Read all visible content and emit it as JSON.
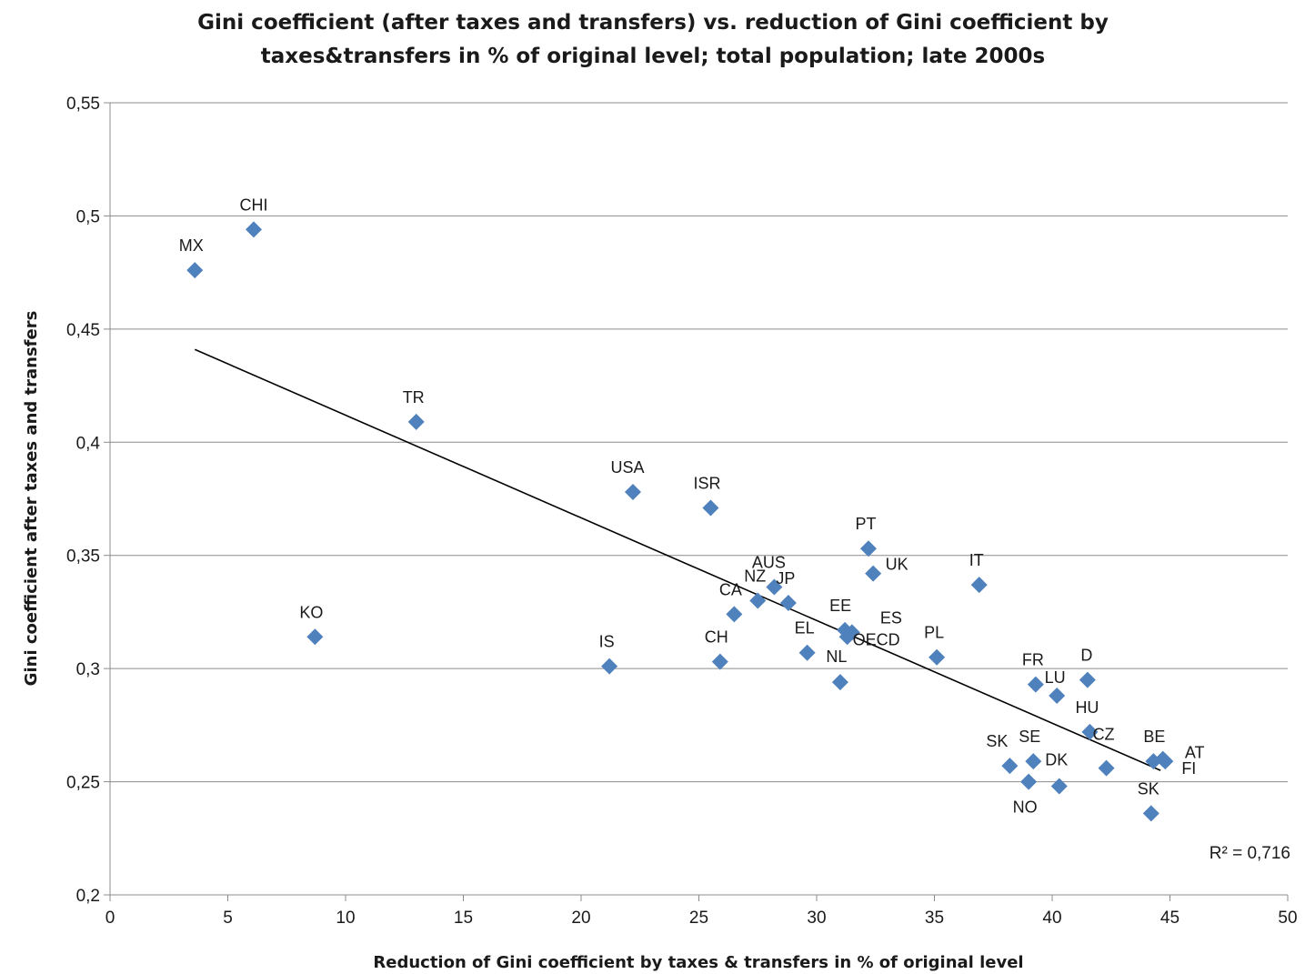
{
  "chart_data": {
    "type": "scatter",
    "title_lines": [
      "Gini coefficient (after taxes and transfers) vs. reduction of Gini coefficient by",
      "taxes&transfers in % of original level; total population; late 2000s"
    ],
    "xlabel": "Reduction of Gini coefficient by taxes & transfers in % of original level",
    "ylabel": "Gini coefficient after taxes and transfers",
    "xlim": [
      0,
      50
    ],
    "ylim": [
      0.2,
      0.55
    ],
    "x_ticks": [
      0,
      5,
      10,
      15,
      20,
      25,
      30,
      35,
      40,
      45,
      50
    ],
    "x_tick_labels": [
      "0",
      "5",
      "10",
      "15",
      "20",
      "25",
      "30",
      "35",
      "40",
      "45",
      "50"
    ],
    "y_ticks": [
      0.2,
      0.25,
      0.3,
      0.35,
      0.4,
      0.45,
      0.5,
      0.55
    ],
    "y_tick_labels": [
      "0,2",
      "0,25",
      "0,3",
      "0,35",
      "0,4",
      "0,45",
      "0,5",
      "0,55"
    ],
    "grid": "horizontal",
    "marker_color": "#4f81bd",
    "trendline": {
      "x": [
        3.6,
        44.6
      ],
      "y": [
        0.441,
        0.255
      ],
      "color": "#000000"
    },
    "r_squared_label": "R² = 0,716",
    "points": [
      {
        "label": "MX",
        "x": 3.6,
        "y": 0.476
      },
      {
        "label": "CHI",
        "x": 6.1,
        "y": 0.494
      },
      {
        "label": "TR",
        "x": 13.0,
        "y": 0.409
      },
      {
        "label": "KO",
        "x": 8.7,
        "y": 0.314
      },
      {
        "label": "USA",
        "x": 22.2,
        "y": 0.378
      },
      {
        "label": "ISR",
        "x": 25.5,
        "y": 0.371
      },
      {
        "label": "IS",
        "x": 21.2,
        "y": 0.301
      },
      {
        "label": "CH",
        "x": 25.9,
        "y": 0.303
      },
      {
        "label": "CA",
        "x": 26.5,
        "y": 0.324
      },
      {
        "label": "NZ",
        "x": 27.5,
        "y": 0.33
      },
      {
        "label": "AUS",
        "x": 28.2,
        "y": 0.336
      },
      {
        "label": "JP",
        "x": 28.8,
        "y": 0.329
      },
      {
        "label": "EL",
        "x": 29.6,
        "y": 0.307
      },
      {
        "label": "NL",
        "x": 31.0,
        "y": 0.294
      },
      {
        "label": "EE",
        "x": 31.2,
        "y": 0.317
      },
      {
        "label": "OECD",
        "x": 31.3,
        "y": 0.314
      },
      {
        "label": "PT",
        "x": 32.2,
        "y": 0.353
      },
      {
        "label": "UK",
        "x": 32.4,
        "y": 0.342
      },
      {
        "label": "ES",
        "x": 31.5,
        "y": 0.316
      },
      {
        "label": "PL",
        "x": 35.1,
        "y": 0.305
      },
      {
        "label": "IT",
        "x": 36.9,
        "y": 0.337
      },
      {
        "label": "FR",
        "x": 39.3,
        "y": 0.293
      },
      {
        "label": "LU",
        "x": 40.2,
        "y": 0.288
      },
      {
        "label": "D",
        "x": 41.5,
        "y": 0.295
      },
      {
        "label": "HU",
        "x": 41.6,
        "y": 0.272
      },
      {
        "label": "SK",
        "x": 38.2,
        "y": 0.257
      },
      {
        "label": "SE",
        "x": 39.2,
        "y": 0.259
      },
      {
        "label": "NO",
        "x": 39.0,
        "y": 0.25
      },
      {
        "label": "DK",
        "x": 40.3,
        "y": 0.248
      },
      {
        "label": "CZ",
        "x": 42.3,
        "y": 0.256
      },
      {
        "label": "BE",
        "x": 44.3,
        "y": 0.259
      },
      {
        "label": "AT",
        "x": 44.7,
        "y": 0.26
      },
      {
        "label": "FI",
        "x": 44.8,
        "y": 0.259
      },
      {
        "label": "SK",
        "x": 44.2,
        "y": 0.236
      }
    ]
  }
}
